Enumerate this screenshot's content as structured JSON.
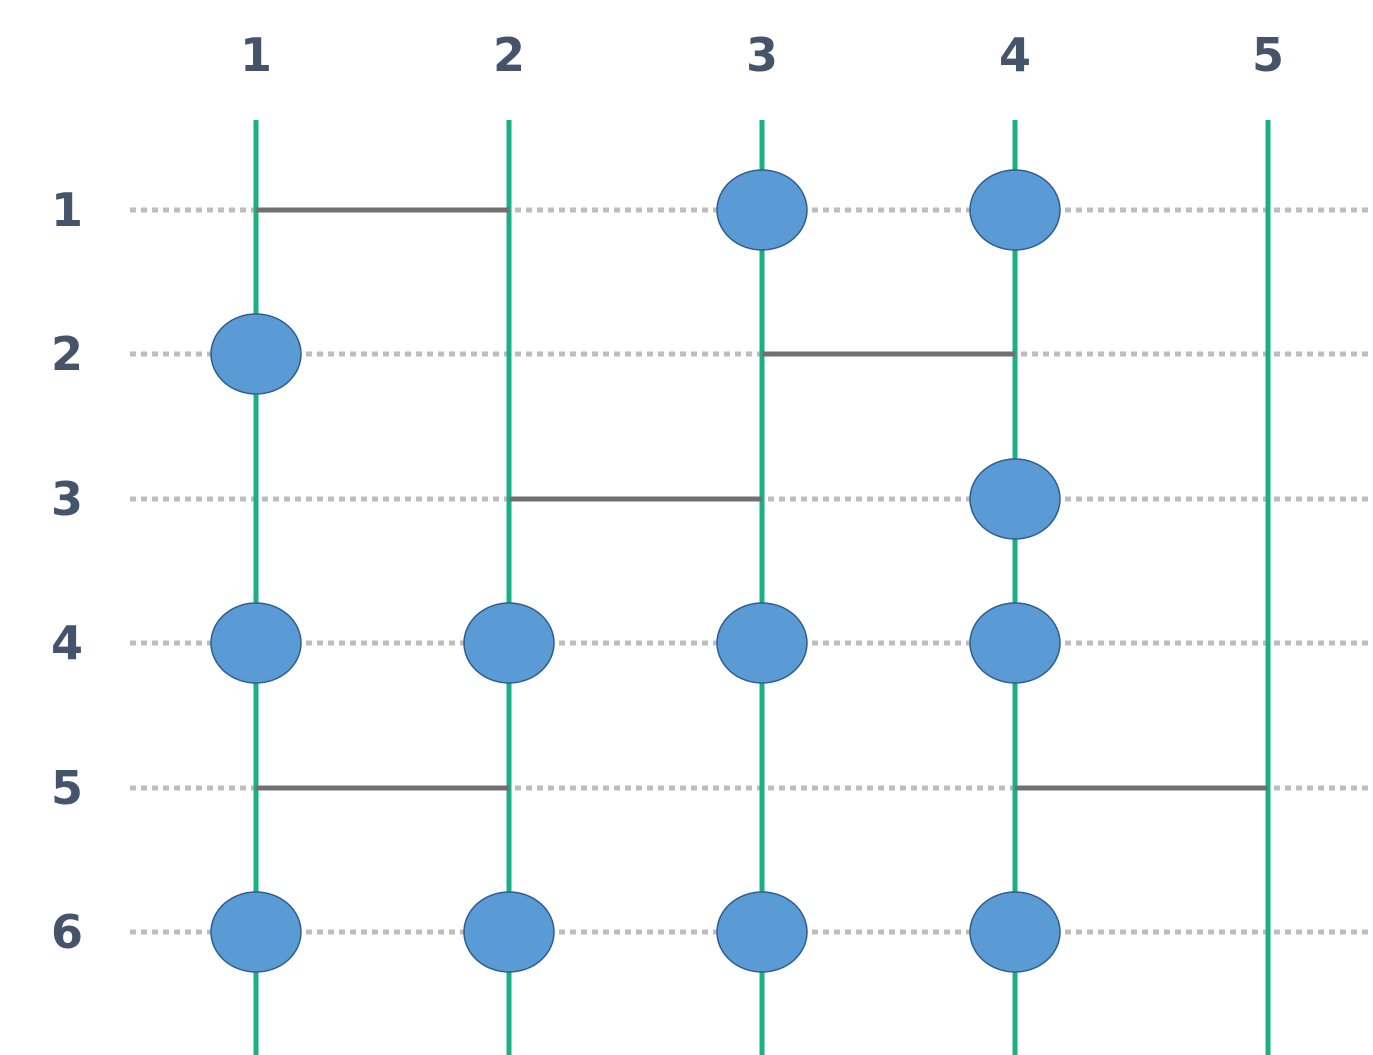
{
  "columns": [
    "1",
    "2",
    "3",
    "4",
    "5"
  ],
  "rows": [
    "1",
    "2",
    "3",
    "4",
    "5",
    "6"
  ],
  "colors": {
    "column_line": "#1bb084",
    "row_guide": "#bdbdbd",
    "connector": "#707070",
    "node_fill": "#5a9ad5",
    "node_stroke": "#2f5e8e",
    "label": "#45536b"
  },
  "connectors": [
    {
      "row": 1,
      "from_col": 1,
      "to_col": 2
    },
    {
      "row": 2,
      "from_col": 3,
      "to_col": 4
    },
    {
      "row": 3,
      "from_col": 2,
      "to_col": 3
    },
    {
      "row": 5,
      "from_col": 1,
      "to_col": 2
    },
    {
      "row": 5,
      "from_col": 4,
      "to_col": 5
    }
  ],
  "nodes": [
    {
      "row": 1,
      "col": 3
    },
    {
      "row": 1,
      "col": 4
    },
    {
      "row": 2,
      "col": 1
    },
    {
      "row": 3,
      "col": 4
    },
    {
      "row": 4,
      "col": 1
    },
    {
      "row": 4,
      "col": 2
    },
    {
      "row": 4,
      "col": 3
    },
    {
      "row": 4,
      "col": 4
    },
    {
      "row": 6,
      "col": 1
    },
    {
      "row": 6,
      "col": 2
    },
    {
      "row": 6,
      "col": 3
    },
    {
      "row": 6,
      "col": 4
    }
  ]
}
